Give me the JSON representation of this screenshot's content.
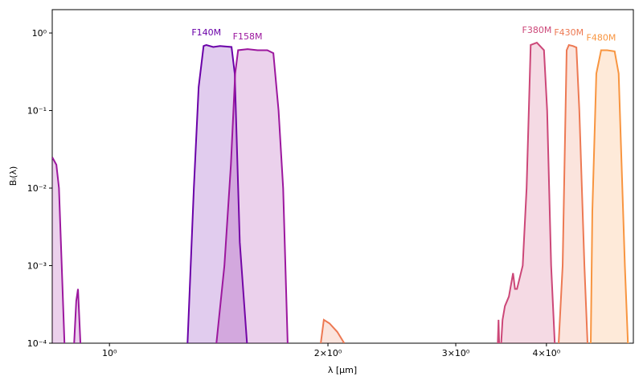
{
  "chart_data": {
    "type": "line",
    "xlabel": "λ [μm]",
    "ylabel": "Bᵢ(λ)",
    "log_x": true,
    "log_y": true,
    "fill": true,
    "xlim": [
      0.834,
      5.27
    ],
    "ylim": [
      0.0001,
      2
    ],
    "xticks": [
      {
        "value": 1,
        "label": "10⁰"
      },
      {
        "value": 2,
        "label": "2×10⁰"
      },
      {
        "value": 3,
        "label": "3×10⁰"
      },
      {
        "value": 4,
        "label": "4×10⁰"
      }
    ],
    "yticks": [
      {
        "value": 0.0001,
        "label": "10⁻⁴"
      },
      {
        "value": 0.001,
        "label": "10⁻³"
      },
      {
        "value": 0.01,
        "label": "10⁻²"
      },
      {
        "value": 0.1,
        "label": "10⁻¹"
      },
      {
        "value": 1,
        "label": "10⁰"
      }
    ],
    "series": [
      {
        "name": "F140M",
        "color": "#6a00a8",
        "x": [
          1.281,
          1.307,
          1.327,
          1.348,
          1.36,
          1.39,
          1.42,
          1.473,
          1.488,
          1.512,
          1.547
        ],
        "values": [
          0.0001,
          0.01,
          0.2,
          0.68,
          0.7,
          0.66,
          0.68,
          0.66,
          0.3,
          0.002,
          0.0001
        ]
      },
      {
        "name": "F158M",
        "color": "#9c179e",
        "x": [
          0.834,
          0.845,
          0.852,
          0.867,
          0.88,
          0.894,
          0.9,
          0.905,
          0.912,
          0.95,
          1.404,
          1.44,
          1.47,
          1.49,
          1.504,
          1.55,
          1.6,
          1.65,
          1.682,
          1.71,
          1.735,
          1.76
        ],
        "values": [
          0.025,
          0.02,
          0.01,
          0.0001,
          null,
          0.0001,
          0.00035,
          0.0005,
          0.0001,
          null,
          0.0001,
          0.001,
          0.02,
          0.3,
          0.6,
          0.62,
          0.6,
          0.6,
          0.55,
          0.1,
          0.01,
          0.0001
        ]
      },
      {
        "name": "F380M",
        "color": "#cc4778",
        "x": [
          3.42,
          3.436,
          3.45,
          3.48,
          3.506,
          3.551,
          3.598,
          3.62,
          3.643,
          3.71,
          3.756,
          3.805,
          3.88,
          3.969,
          4.009,
          4.06,
          4.121
        ],
        "values": [
          5e-05,
          0.0002,
          5e-05,
          0.0002,
          0.0003,
          0.0004,
          0.0008,
          0.0005,
          0.0005,
          0.001,
          0.01,
          0.7,
          0.75,
          0.6,
          0.1,
          0.001,
          5e-05
        ]
      },
      {
        "name": "F430M",
        "color": "#ed7953",
        "x": [
          1.955,
          1.974,
          2.01,
          2.06,
          2.106,
          3.0,
          4.158,
          4.211,
          4.265,
          4.295,
          4.35,
          4.399,
          4.44,
          4.512,
          4.557
        ],
        "values": [
          0.0001,
          0.0002,
          0.00018,
          0.00014,
          0.0001,
          null,
          0.0001,
          0.001,
          0.6,
          0.7,
          0.68,
          0.65,
          0.1,
          0.001,
          0.0001
        ]
      },
      {
        "name": "F480M",
        "color": "#f89540",
        "x": [
          4.604,
          4.627,
          4.686,
          4.758,
          4.85,
          4.966,
          5.03,
          5.07,
          5.13,
          5.18,
          5.27
        ],
        "values": [
          0.0001,
          0.005,
          0.3,
          0.6,
          0.6,
          0.58,
          0.3,
          0.03,
          0.001,
          0.0001,
          9e-05
        ]
      }
    ]
  }
}
